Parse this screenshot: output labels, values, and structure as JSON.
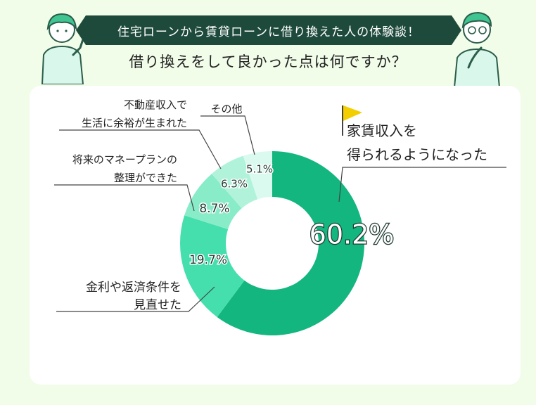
{
  "header": {
    "banner": "住宅ローンから賃貸ローンに借り換えた人の体験談！",
    "question": "借り換えをして良かった点は何ですか？"
  },
  "chart_data": {
    "type": "pie",
    "style": "donut",
    "unit": "%",
    "categories": [
      "家賃収入を得られるようになった",
      "金利や返済条件を見直せた",
      "将来のマネープランの整理ができた",
      "不動産収入で生活に余裕が生まれた",
      "その他"
    ],
    "values": [
      60.2,
      19.7,
      8.7,
      6.3,
      5.1
    ],
    "value_labels": [
      "60.2%",
      "19.7%",
      "8.7%",
      "6.3%",
      "5.1%"
    ],
    "colors": [
      "#12b67e",
      "#44dfad",
      "#88ecc9",
      "#b1f3da",
      "#dbfaef"
    ],
    "label_lines": [
      [
        "家賃収入を",
        "得られるようになった"
      ],
      [
        "金利や返済条件を",
        "見直せた"
      ],
      [
        "将来のマネープランの",
        "整理ができた"
      ],
      [
        "不動産収入で",
        "生活に余裕が生まれた"
      ],
      [
        "その他"
      ]
    ]
  },
  "colors": {
    "accent": "#12b67e",
    "banner_bg": "#1e4a3b",
    "page_bg": "#f1fce9",
    "flag": "#f3cf00"
  }
}
